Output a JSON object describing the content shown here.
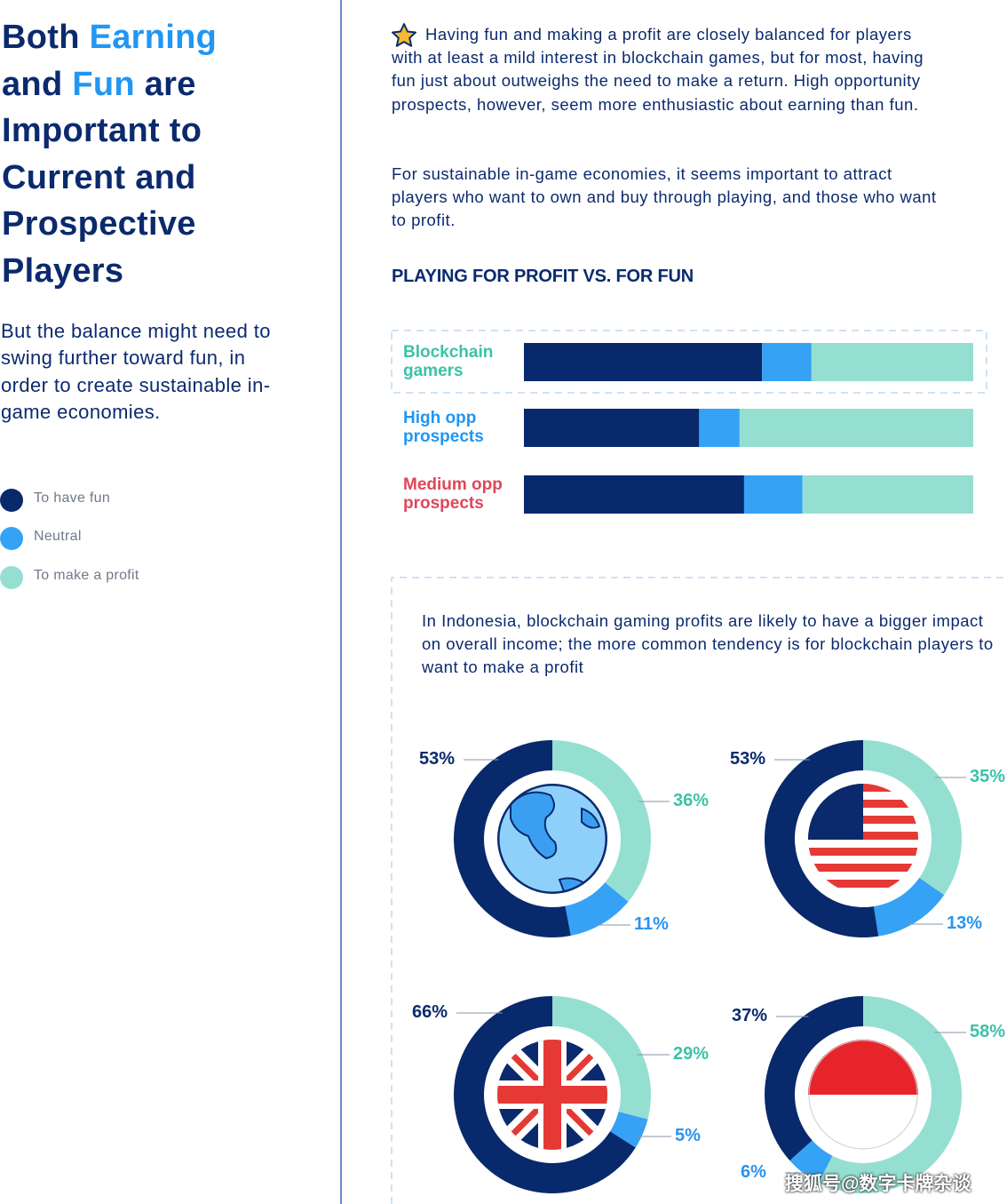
{
  "header": {
    "title": [
      {
        "text": "Both ",
        "color": "#0b2a6e"
      },
      {
        "text": "Earning",
        "color": "#2196f3"
      },
      {
        "text": " and ",
        "color": "#0b2a6e"
      },
      {
        "text": "Fun",
        "color": "#2196f3"
      },
      {
        "text": " are Important to Current and Prospective Players",
        "color": "#0b2a6e"
      }
    ],
    "subtitle": "But the balance might need to swing further toward fun, in order to create sustainable in-game economies."
  },
  "intro": [
    "Having fun and making a profit are closely balanced for players with at least a mild interest in blockchain games, but for most, having fun just about outweighs the need to make a return. High opportunity prospects, however, seem more enthusiastic about earning than fun.",
    "For sustainable in-game economies, it seems important to attract players who want to own and buy through playing, and those who want to profit."
  ],
  "chart_data": [
    {
      "type": "bar",
      "orientation": "horizontal",
      "stacked": true,
      "title": "PLAYING FOR PROFIT VS. FOR FUN",
      "categories": [
        "Blockchain gamers",
        "High opp prospects",
        "Medium opp prospects"
      ],
      "category_colors": [
        "#3cc2a8",
        "#2196f3",
        "#e0465a"
      ],
      "series": [
        {
          "name": "To have fun",
          "color": "#08296b",
          "values": [
            53,
            39,
            49
          ]
        },
        {
          "name": "Neutral",
          "color": "#35a2f5",
          "values": [
            11,
            9,
            13
          ]
        },
        {
          "name": "To make a profit",
          "color": "#95dfd2",
          "values": [
            36,
            52,
            38
          ]
        }
      ],
      "xlim": [
        0,
        100
      ]
    },
    {
      "type": "pie",
      "values": [
        53,
        36,
        11
      ],
      "value_labels": [
        "53%",
        "36%",
        "11%"
      ],
      "colors": [
        "#08296b",
        "#95dfd2",
        "#35a2f5"
      ]
    },
    {
      "type": "pie",
      "values": [
        53,
        35,
        13
      ],
      "value_labels": [
        "53%",
        "35%",
        "13%"
      ],
      "colors": [
        "#08296b",
        "#95dfd2",
        "#35a2f5"
      ]
    },
    {
      "type": "pie",
      "values": [
        66,
        29,
        5
      ],
      "value_labels": [
        "66%",
        "29%",
        "5%"
      ],
      "colors": [
        "#08296b",
        "#95dfd2",
        "#35a2f5"
      ]
    },
    {
      "type": "pie",
      "values": [
        37,
        58,
        6
      ],
      "value_labels": [
        "37%",
        "58%",
        "6%"
      ],
      "colors": [
        "#08296b",
        "#95dfd2",
        "#35a2f5"
      ]
    }
  ],
  "note": "In Indonesia, blockchain gaming profits are likely to have a bigger impact on overall income; the more common tendency is for blockchain players to want to make a profit",
  "watermark": "搜狐号@数字卡牌杂谈"
}
